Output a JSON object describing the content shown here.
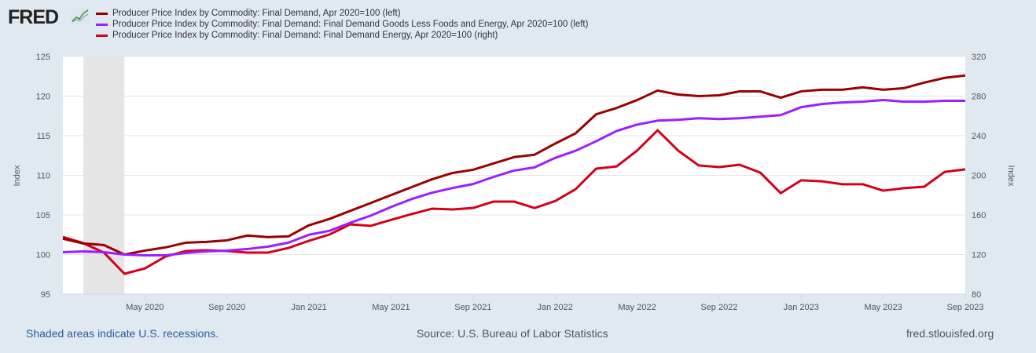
{
  "logo": "FRED",
  "footer": {
    "recessions": "Shaded areas indicate U.S. recessions.",
    "source": "Source: U.S. Bureau of Labor Statistics",
    "site": "fred.stlouisfed.org"
  },
  "chart_data": {
    "type": "line",
    "x": [
      "2020-01",
      "2020-02",
      "2020-03",
      "2020-04",
      "2020-05",
      "2020-06",
      "2020-07",
      "2020-08",
      "2020-09",
      "2020-10",
      "2020-11",
      "2020-12",
      "2021-01",
      "2021-02",
      "2021-03",
      "2021-04",
      "2021-05",
      "2021-06",
      "2021-07",
      "2021-08",
      "2021-09",
      "2021-10",
      "2021-11",
      "2021-12",
      "2022-01",
      "2022-02",
      "2022-03",
      "2022-04",
      "2022-05",
      "2022-06",
      "2022-07",
      "2022-08",
      "2022-09",
      "2022-10",
      "2022-11",
      "2022-12",
      "2023-01",
      "2023-02",
      "2023-03",
      "2023-04",
      "2023-05",
      "2023-06",
      "2023-07",
      "2023-08",
      "2023-09"
    ],
    "xticks": [
      {
        "i": 4,
        "label": "May 2020"
      },
      {
        "i": 8,
        "label": "Sep 2020"
      },
      {
        "i": 12,
        "label": "Jan 2021"
      },
      {
        "i": 16,
        "label": "May 2021"
      },
      {
        "i": 20,
        "label": "Sep 2021"
      },
      {
        "i": 24,
        "label": "Jan 2022"
      },
      {
        "i": 28,
        "label": "May 2022"
      },
      {
        "i": 32,
        "label": "Sep 2022"
      },
      {
        "i": 36,
        "label": "Jan 2023"
      },
      {
        "i": 40,
        "label": "May 2023"
      },
      {
        "i": 44,
        "label": "Sep 2023"
      }
    ],
    "ylabel_left": "Index",
    "ylabel_right": "Index",
    "ylim_left": [
      95,
      125
    ],
    "yticks_left": [
      "95",
      "100",
      "105",
      "110",
      "115",
      "120",
      "125"
    ],
    "ylim_right": [
      80,
      320
    ],
    "yticks_right": [
      "80",
      "120",
      "160",
      "200",
      "240",
      "280",
      "320"
    ],
    "recession": {
      "start": 1,
      "end": 3
    },
    "grid": true,
    "series": [
      {
        "name": "Producer Price Index by Commodity: Final Demand, Apr 2020=100 (left)",
        "color": "#9c0000",
        "axis": "left",
        "values": [
          102.0,
          101.4,
          101.2,
          100.0,
          100.5,
          100.9,
          101.5,
          101.6,
          101.8,
          102.4,
          102.2,
          102.3,
          103.7,
          104.5,
          105.5,
          106.5,
          107.5,
          108.5,
          109.5,
          110.3,
          110.7,
          111.5,
          112.3,
          112.6,
          114.0,
          115.3,
          117.7,
          118.5,
          119.5,
          120.7,
          120.2,
          120.0,
          120.1,
          120.6,
          120.6,
          119.8,
          120.6,
          120.8,
          120.8,
          121.1,
          120.8,
          121.0,
          121.7,
          122.3,
          122.6
        ]
      },
      {
        "name": "Producer Price Index by Commodity: Final Demand: Final Demand Goods Less Foods and Energy, Apr 2020=100 (left)",
        "color": "#9b1fff",
        "axis": "left",
        "values": [
          100.3,
          100.4,
          100.3,
          100.0,
          99.9,
          99.9,
          100.2,
          100.4,
          100.5,
          100.7,
          101.0,
          101.5,
          102.5,
          103.0,
          104.0,
          104.9,
          106.0,
          107.0,
          107.8,
          108.4,
          108.9,
          109.8,
          110.6,
          111.0,
          112.2,
          113.1,
          114.3,
          115.6,
          116.4,
          116.9,
          117.0,
          117.2,
          117.1,
          117.2,
          117.4,
          117.6,
          118.6,
          119.0,
          119.2,
          119.3,
          119.5,
          119.3,
          119.3,
          119.4,
          119.4
        ]
      },
      {
        "name": "Producer Price Index by Commodity: Final Demand: Final Demand Energy, Apr 2020=100 (right)",
        "color": "#d4001a",
        "axis": "right",
        "values": [
          137.8,
          131.5,
          122,
          100.6,
          106,
          118,
          123.6,
          124.4,
          123.6,
          122,
          122,
          126.7,
          133.9,
          140.2,
          150.5,
          149,
          155,
          160.8,
          166.3,
          165.5,
          167,
          173.5,
          173.5,
          167,
          174,
          186,
          206.7,
          209,
          225,
          245.5,
          225,
          210,
          208.3,
          210.7,
          202.8,
          182,
          195,
          194,
          191,
          191,
          184.5,
          187,
          188.5,
          203.5,
          206
        ]
      }
    ]
  }
}
